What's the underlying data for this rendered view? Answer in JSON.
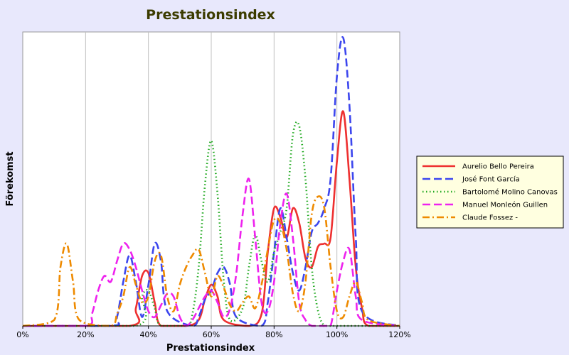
{
  "chart_data": {
    "type": "line",
    "title": "Prestationsindex",
    "xlabel": "Prestationsindex",
    "ylabel": "Förekomst",
    "xlim": [
      0,
      120
    ],
    "ylim": [
      0,
      100
    ],
    "x_ticks": [
      0,
      20,
      40,
      60,
      80,
      100,
      120
    ],
    "x_tick_labels": [
      "0%",
      "20%",
      "40%",
      "60%",
      "80%",
      "100%",
      "120%"
    ],
    "grid": "vertical",
    "legend_position": "right",
    "series": [
      {
        "name": "Aurelio Bello Pereira",
        "color": "#ee3030",
        "style": "solid",
        "x": [
          0,
          34,
          36,
          38,
          40,
          42,
          44,
          52,
          56,
          58,
          60,
          62,
          64,
          72,
          76,
          78,
          80,
          82,
          84,
          86,
          88,
          90,
          92,
          94,
          96,
          98,
          100,
          102,
          104,
          106,
          108,
          110,
          120
        ],
        "y": [
          0,
          0,
          6,
          17,
          18,
          8,
          0,
          0,
          2,
          9,
          14,
          10,
          2,
          0,
          4,
          25,
          40,
          37,
          30,
          40,
          35,
          23,
          20,
          27,
          28,
          30,
          56,
          73,
          50,
          20,
          6,
          0,
          0
        ]
      },
      {
        "name": "José Font García",
        "color": "#3c46ee",
        "style": "dashed",
        "x": [
          0,
          28,
          30,
          32,
          34,
          36,
          38,
          40,
          42,
          44,
          46,
          54,
          56,
          58,
          60,
          62,
          64,
          66,
          68,
          76,
          78,
          80,
          82,
          84,
          86,
          88,
          90,
          92,
          94,
          96,
          98,
          100,
          102,
          104,
          106,
          108,
          120
        ],
        "y": [
          0,
          0,
          3,
          15,
          24,
          15,
          3,
          14,
          28,
          22,
          5,
          0,
          3,
          9,
          12,
          18,
          20,
          14,
          3,
          0,
          8,
          25,
          40,
          30,
          18,
          12,
          20,
          32,
          35,
          40,
          50,
          85,
          98,
          75,
          30,
          5,
          0
        ]
      },
      {
        "name": "Bartolomé Molino Canovas",
        "color": "#22aa22",
        "style": "dotted",
        "x": [
          0,
          36,
          38,
          40,
          42,
          44,
          52,
          54,
          56,
          58,
          60,
          62,
          64,
          66,
          70,
          72,
          74,
          76,
          78,
          80,
          82,
          84,
          86,
          88,
          90,
          92,
          94,
          96,
          98,
          120
        ],
        "y": [
          0,
          0,
          10,
          12,
          6,
          0,
          0,
          4,
          20,
          48,
          63,
          45,
          15,
          2,
          6,
          20,
          31,
          22,
          15,
          25,
          32,
          40,
          65,
          68,
          50,
          20,
          5,
          0,
          0,
          0
        ]
      },
      {
        "name": "Manuel Monleón Guillen",
        "color": "#ee22ee",
        "style": "dashed",
        "x": [
          0,
          20,
          22,
          24,
          26,
          28,
          30,
          32,
          34,
          36,
          38,
          40,
          42,
          44,
          46,
          48,
          50,
          52,
          54,
          56,
          58,
          60,
          62,
          64,
          66,
          68,
          70,
          72,
          74,
          76,
          78,
          80,
          82,
          84,
          86,
          88,
          90,
          92,
          94,
          96,
          98,
          100,
          102,
          104,
          106,
          108,
          120
        ],
        "y": [
          0,
          0,
          4,
          12,
          17,
          15,
          22,
          28,
          26,
          20,
          12,
          5,
          3,
          7,
          11,
          10,
          3,
          0,
          2,
          6,
          10,
          12,
          8,
          3,
          6,
          18,
          38,
          50,
          30,
          8,
          5,
          15,
          35,
          45,
          30,
          8,
          2,
          0,
          0,
          0,
          0,
          12,
          22,
          26,
          10,
          2,
          0
        ]
      },
      {
        "name": "Claude Fossez -",
        "color": "#ee8a00",
        "style": "dashdot",
        "x": [
          0,
          10,
          12,
          14,
          16,
          18,
          28,
          30,
          32,
          34,
          36,
          38,
          40,
          42,
          44,
          46,
          48,
          50,
          52,
          54,
          56,
          58,
          60,
          62,
          64,
          66,
          68,
          70,
          72,
          74,
          76,
          78,
          80,
          82,
          84,
          86,
          88,
          90,
          92,
          94,
          96,
          98,
          100,
          102,
          104,
          106,
          108,
          110,
          120
        ],
        "y": [
          0,
          2,
          20,
          28,
          15,
          2,
          0,
          4,
          10,
          20,
          14,
          8,
          10,
          22,
          24,
          10,
          5,
          14,
          20,
          24,
          26,
          18,
          10,
          17,
          13,
          7,
          5,
          8,
          10,
          6,
          14,
          26,
          36,
          35,
          26,
          11,
          5,
          15,
          38,
          44,
          40,
          20,
          5,
          3,
          10,
          15,
          8,
          2,
          0
        ]
      }
    ]
  }
}
